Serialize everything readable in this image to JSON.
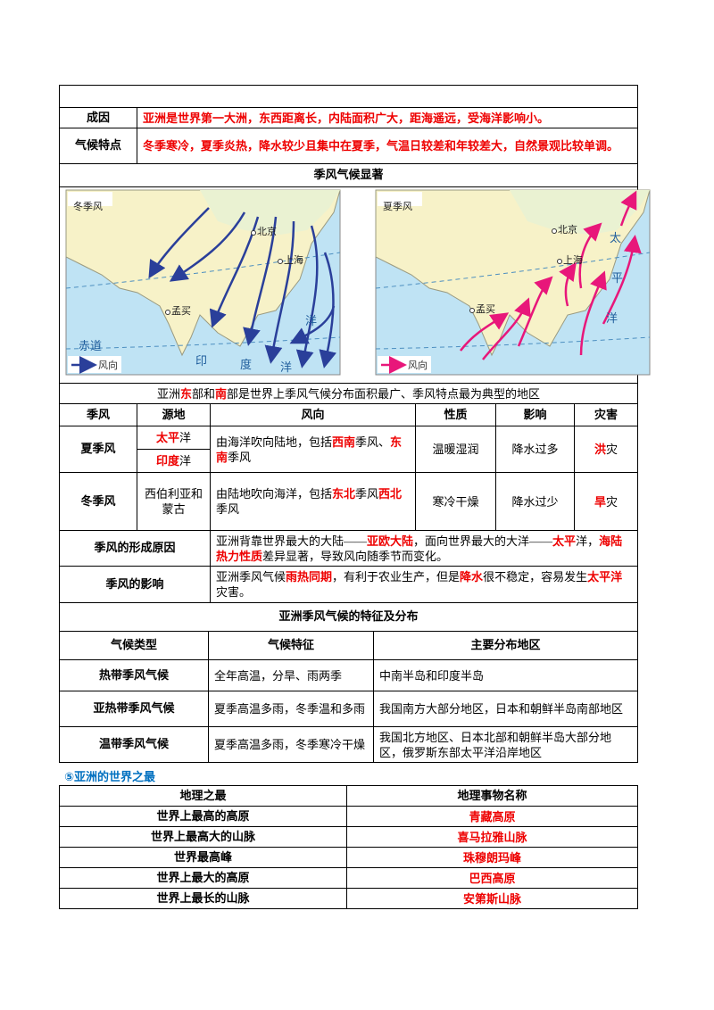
{
  "top_table": {
    "rows": [
      {
        "label": "成因",
        "content": [
          {
            "text": "亚洲是世界第一大洲，东西距离长，内陆面积广大，距海遥远，受海洋影响小。",
            "red": true
          }
        ]
      },
      {
        "label": "气候特点",
        "content": [
          {
            "text": "冬季寒冷，夏季炎热，降水较少且集中在夏季，气温日较差和年较差大，自然景观比较单调。",
            "red": true
          }
        ]
      }
    ]
  },
  "monsoon": {
    "title": "季风气候显著",
    "maps": [
      {
        "labels": [
          "冬季风",
          "北京",
          "上海",
          "孟买",
          "洋",
          "印",
          "度",
          "洋",
          "赤道"
        ],
        "legend": "风向"
      },
      {
        "labels": [
          "夏季风",
          "北京",
          "上海",
          "孟买",
          "太",
          "平",
          "洋"
        ],
        "legend": "风向"
      }
    ],
    "summary": [
      {
        "text": "亚洲"
      },
      {
        "text": "东",
        "red": true
      },
      {
        "text": "部和"
      },
      {
        "text": "南",
        "red": true
      },
      {
        "text": "部是世界上季风气候分布面积最广、季风特点最为典型的地区"
      }
    ],
    "headers": [
      "季风",
      "源地",
      "风向",
      "性质",
      "影响",
      "灾害"
    ],
    "rows": [
      {
        "name": "夏季风",
        "sources": [
          [
            {
              "text": "太平",
              "red": true
            },
            {
              "text": "洋"
            }
          ],
          [
            {
              "text": "印度",
              "red": true
            },
            {
              "text": "洋"
            }
          ]
        ],
        "direction": [
          {
            "text": "由海洋吹向陆地，包括"
          },
          {
            "text": "西南",
            "red": true
          },
          {
            "text": "季风、"
          },
          {
            "text": "东南",
            "red": true
          },
          {
            "text": "季风"
          }
        ],
        "nature": "温暖湿润",
        "effect": "降水过多",
        "disaster": [
          {
            "text": "洪",
            "red": true
          },
          {
            "text": "灾"
          }
        ]
      },
      {
        "name": "冬季风",
        "sources": [
          [
            {
              "text": "西伯利亚和蒙古"
            }
          ]
        ],
        "direction": [
          {
            "text": "由陆地吹向海洋，包括"
          },
          {
            "text": "东北",
            "red": true
          },
          {
            "text": "季风"
          },
          {
            "text": "西北",
            "red": true
          },
          {
            "text": "季风"
          }
        ],
        "nature": "寒冷干燥",
        "effect": "降水过少",
        "disaster": [
          {
            "text": "旱",
            "red": true
          },
          {
            "text": "灾"
          }
        ]
      }
    ],
    "causes": {
      "label": "季风的形成原因",
      "content": [
        {
          "text": "亚洲背靠世界最大的大陆——"
        },
        {
          "text": "亚欧大陆",
          "red": true
        },
        {
          "text": "，面向世界最大的大洋——"
        },
        {
          "text": "太平",
          "red": true
        },
        {
          "text": "洋，"
        },
        {
          "text": "海陆热力性质",
          "red": true
        },
        {
          "text": "差异显著，导致风向随季节而变化。"
        }
      ]
    },
    "influence": {
      "label": "季风的影响",
      "content": [
        {
          "text": "亚洲季风气候"
        },
        {
          "text": "雨热同期",
          "red": true
        },
        {
          "text": "，有利于农业生产，但是"
        },
        {
          "text": "降水",
          "red": true
        },
        {
          "text": "很不稳定，容易发生"
        },
        {
          "text": "太平洋",
          "red": true
        },
        {
          "text": "灾害。"
        }
      ]
    }
  },
  "climate": {
    "title": "亚洲季风气候的特征及分布",
    "headers": [
      "气候类型",
      "气候特征",
      "主要分布地区"
    ],
    "rows": [
      [
        "热带季风气候",
        "全年高温，分旱、雨两季",
        "中南半岛和印度半岛"
      ],
      [
        "亚热带季风气候",
        "夏季高温多雨，冬季温和多雨",
        "我国南方大部分地区，日本和朝鲜半岛南部地区"
      ],
      [
        "温带季风气候",
        "夏季高温多雨，冬季寒冷干燥",
        "我国北方地区、日本北部和朝鲜半岛大部分地区，俄罗斯东部太平洋沿岸地区"
      ]
    ]
  },
  "superlatives": {
    "heading": "⑤亚洲的世界之最",
    "headers": [
      "地理之最",
      "地理事物名称"
    ],
    "rows": [
      [
        "世界上最高的高原",
        "青藏高原"
      ],
      [
        "世界上最高大的山脉",
        "喜马拉雅山脉"
      ],
      [
        "世界最高峰",
        "珠穆朗玛峰"
      ],
      [
        "世界上最大的高原",
        "巴西高原"
      ],
      [
        "世界上最长的山脉",
        "安第斯山脉"
      ]
    ]
  }
}
